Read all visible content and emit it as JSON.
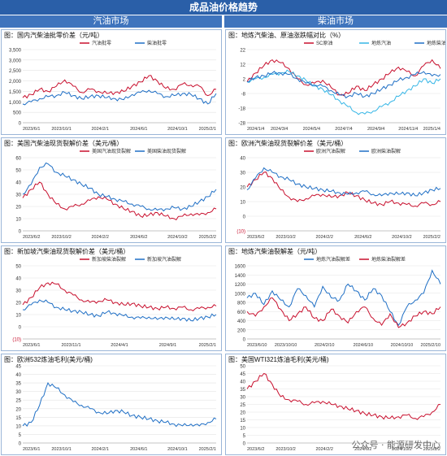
{
  "banner_title": "成品油价格趋势",
  "columns": {
    "left": "汽油市场",
    "right": "柴油市场"
  },
  "watermark": "公众号 · 能源研发中心",
  "colors": {
    "red": "#c8102e",
    "blue": "#1f6fc5",
    "lightblue": "#36b6e6",
    "frame": "#9bb6d8"
  },
  "chart_data": [
    {
      "type": "line",
      "title": "图：国内汽柴油批零价差（元/吨）",
      "ylim": [
        0,
        3500
      ],
      "yticks": [
        "0",
        "500",
        "1,000",
        "1,500",
        "2,000",
        "2,500",
        "3,000",
        "3,500"
      ],
      "xticks": [
        "2023/6/1",
        "2023/10/1",
        "2024/2/1",
        "2024/6/1",
        "2024/10/1",
        "2025/2/1"
      ],
      "legend_position": "top",
      "series": [
        {
          "name": "汽油批零",
          "color": "red",
          "values": [
            1200,
            1350,
            1600,
            1500,
            1750,
            2050,
            1750,
            1450,
            1600,
            1500,
            1400,
            1450,
            1500,
            1750,
            1950,
            2250,
            2000,
            1650,
            1600,
            1850,
            1800,
            1750,
            1300,
            1600
          ]
        },
        {
          "name": "柴油批零",
          "color": "blue",
          "values": [
            900,
            1000,
            1150,
            1250,
            1300,
            1450,
            1300,
            1150,
            1250,
            1300,
            1200,
            1150,
            1100,
            1350,
            1450,
            1550,
            1400,
            1250,
            1300,
            1400,
            1350,
            1150,
            900,
            1400
          ]
        }
      ]
    },
    {
      "type": "line",
      "title": "图：地炼汽柴油、原油涨跌幅对比（%）",
      "ylim": [
        -28,
        22
      ],
      "yticks": [
        "22",
        "12",
        "2",
        "-8",
        "-18",
        "-28"
      ],
      "xticks": [
        "2024/1/4",
        "2024/3/4",
        "2024/5/4",
        "2024/7/4",
        "2024/9/4",
        "2024/11/4",
        "2025/1/4"
      ],
      "legend_position": "top",
      "series": [
        {
          "name": "SC原油",
          "color": "red",
          "values": [
            0,
            6,
            11,
            15,
            13,
            9,
            2,
            -2,
            -1,
            1,
            -4,
            -9,
            -8,
            -3,
            -6,
            -2,
            2,
            6,
            10,
            7,
            4,
            11,
            15,
            9
          ]
        },
        {
          "name": "地炼汽油",
          "color": "lightblue",
          "values": [
            0,
            2,
            3,
            5,
            6,
            7,
            4,
            1,
            -3,
            -5,
            -9,
            -13,
            -17,
            -21,
            -22,
            -20,
            -17,
            -14,
            -10,
            -6,
            -3,
            2,
            -1,
            2
          ]
        },
        {
          "name": "地炼柴油",
          "color": "blue",
          "values": [
            0,
            3,
            4,
            6,
            6,
            5,
            2,
            -1,
            -2,
            -3,
            -6,
            -9,
            -10,
            -8,
            -10,
            -8,
            -5,
            -2,
            1,
            3,
            5,
            7,
            4,
            5
          ]
        }
      ]
    },
    {
      "type": "line",
      "title": "图：美国汽柴油现货裂解价差（美元/桶）",
      "ylim": [
        0,
        60
      ],
      "yticks": [
        "0",
        "10",
        "20",
        "30",
        "40",
        "50",
        "60"
      ],
      "xticks": [
        "2023/6/2",
        "2023/10/2",
        "2024/2/2",
        "2024/6/2",
        "2024/10/2",
        "2025/2/2"
      ],
      "legend_position": "top",
      "series": [
        {
          "name": "美国汽油现货裂解",
          "color": "red",
          "values": [
            27,
            34,
            40,
            30,
            22,
            18,
            20,
            22,
            25,
            28,
            26,
            22,
            18,
            16,
            12,
            13,
            15,
            12,
            10,
            12,
            14,
            13,
            15,
            18
          ]
        },
        {
          "name": "美国柴油现货裂解",
          "color": "blue",
          "values": [
            30,
            38,
            52,
            55,
            48,
            45,
            42,
            38,
            35,
            30,
            28,
            26,
            24,
            22,
            20,
            18,
            17,
            18,
            19,
            18,
            20,
            24,
            28,
            34
          ]
        }
      ]
    },
    {
      "type": "line",
      "title": "图：欧洲汽柴油现货裂解价差（美元/桶）",
      "ylim": [
        -10,
        40
      ],
      "yticks": [
        "(10)",
        "0",
        "10",
        "20",
        "30",
        "40"
      ],
      "xticks": [
        "2023/6/2",
        "2023/10/2",
        "2024/2/2",
        "2024/6/2",
        "2024/10/2",
        "2025/2/2"
      ],
      "legend_position": "top",
      "series": [
        {
          "name": "欧洲汽油裂解",
          "color": "red",
          "values": [
            20,
            25,
            30,
            26,
            18,
            13,
            10,
            12,
            14,
            15,
            13,
            14,
            16,
            14,
            11,
            9,
            8,
            10,
            9,
            8,
            7,
            9,
            8,
            10
          ]
        },
        {
          "name": "欧洲柴油裂解",
          "color": "blue",
          "values": [
            18,
            26,
            33,
            30,
            27,
            25,
            22,
            20,
            19,
            18,
            17,
            16,
            15,
            16,
            17,
            15,
            14,
            16,
            15,
            16,
            14,
            16,
            18,
            19
          ]
        }
      ]
    },
    {
      "type": "line",
      "title": "图：新加坡汽柴油现货裂解价差（美元/桶）",
      "ylim": [
        -10,
        50
      ],
      "yticks": [
        "(10)",
        "0",
        "10",
        "20",
        "30",
        "40",
        "50"
      ],
      "xticks": [
        "2023/6/1",
        "2023/11/1",
        "2024/4/1",
        "2024/9/1",
        "2025/2/1"
      ],
      "legend_position": "top",
      "series": [
        {
          "name": "新加坡柴油裂解",
          "color": "red",
          "values": [
            18,
            24,
            32,
            36,
            35,
            30,
            26,
            22,
            20,
            21,
            22,
            20,
            18,
            19,
            17,
            16,
            15,
            16,
            15,
            16,
            14,
            15,
            16,
            17
          ]
        },
        {
          "name": "新加坡汽油裂解",
          "color": "blue",
          "values": [
            14,
            18,
            22,
            20,
            16,
            14,
            13,
            12,
            10,
            9,
            12,
            11,
            9,
            8,
            7,
            8,
            6,
            8,
            6,
            7,
            5,
            7,
            8,
            10
          ]
        }
      ]
    },
    {
      "type": "line",
      "title": "图：地炼汽柴油裂解差（元/吨）",
      "ylim": [
        0,
        1600
      ],
      "yticks": [
        "0",
        "200",
        "400",
        "600",
        "800",
        "1000",
        "1200",
        "1400",
        "1600"
      ],
      "xticks": [
        "2023/6/10",
        "2023/10/10",
        "2024/2/10",
        "2024/6/10",
        "2024/10/10",
        "2025/2/10"
      ],
      "legend_position": "top",
      "series": [
        {
          "name": "地炼汽油裂解差",
          "color": "blue",
          "values": [
            900,
            1000,
            750,
            1050,
            850,
            700,
            1100,
            950,
            700,
            1150,
            900,
            850,
            1200,
            1050,
            850,
            1100,
            950,
            600,
            300,
            700,
            850,
            1000,
            1500,
            1200
          ]
        },
        {
          "name": "地炼柴油裂解差",
          "color": "red",
          "values": [
            600,
            500,
            700,
            900,
            650,
            400,
            550,
            700,
            450,
            400,
            650,
            500,
            350,
            600,
            700,
            450,
            300,
            550,
            250,
            350,
            500,
            600,
            550,
            700
          ]
        }
      ]
    },
    {
      "type": "line",
      "title": "图：欧洲532炼油毛利(美元/桶)",
      "ylim": [
        0,
        45
      ],
      "yticks": [
        "0",
        "5",
        "10",
        "15",
        "20",
        "25",
        "30",
        "35",
        "40",
        "45"
      ],
      "xticks": [
        "2023/6/1",
        "2023/10/1",
        "2024/2/1",
        "2024/6/1",
        "2024/10/1",
        "2025/2/1"
      ],
      "legend_position": "none",
      "series": [
        {
          "name": "",
          "color": "blue",
          "values": [
            10,
            12,
            22,
            35,
            32,
            28,
            24,
            22,
            20,
            18,
            17,
            19,
            18,
            16,
            15,
            14,
            13,
            12,
            11,
            10,
            11,
            10,
            12,
            14
          ]
        }
      ]
    },
    {
      "type": "line",
      "title": "图：美国WTI321炼油毛利(美元/桶)",
      "ylim": [
        0,
        50
      ],
      "yticks": [
        "0",
        "5",
        "10",
        "15",
        "20",
        "25",
        "30",
        "35",
        "40",
        "45",
        "50"
      ],
      "xticks": [
        "2023/6/2",
        "2023/10/2",
        "2024/2/2",
        "2024/6/2",
        "2024/10/2",
        "2025/2/2"
      ],
      "legend_position": "none",
      "series": [
        {
          "name": "",
          "color": "red",
          "values": [
            35,
            40,
            45,
            38,
            30,
            28,
            27,
            25,
            26,
            27,
            25,
            24,
            22,
            21,
            19,
            18,
            17,
            16,
            17,
            18,
            16,
            17,
            20,
            25
          ]
        }
      ]
    }
  ]
}
